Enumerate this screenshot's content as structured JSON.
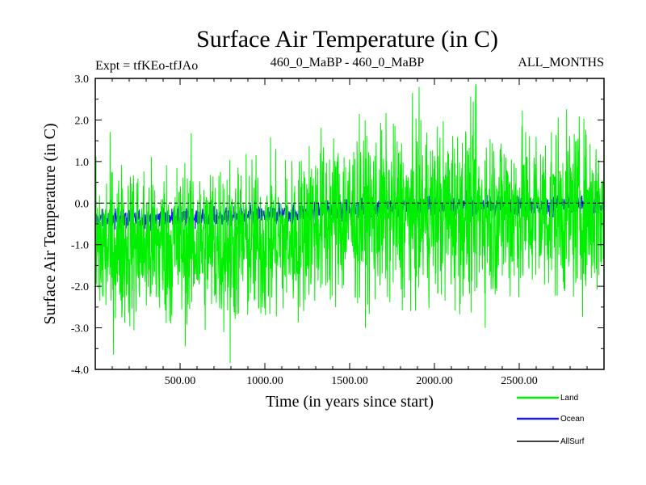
{
  "chart_data": {
    "type": "line",
    "title": "Surface Air Temperature (in C)",
    "subtitle_left": "Expt = tfKEo-tfJAo",
    "subtitle_center": "460_0_MaBP - 460_0_MaBP",
    "subtitle_right": "ALL_MONTHS",
    "xlabel": "Time (in years since start)",
    "ylabel": "Surface Air Temperature (in C)",
    "xlim": [
      0,
      3000
    ],
    "ylim": [
      -4.0,
      3.0
    ],
    "xticks": [
      500,
      1000,
      1500,
      2000,
      2500
    ],
    "xtick_labels": [
      "500.00",
      "1000.00",
      "1500.00",
      "2000.00",
      "2500.00"
    ],
    "yticks": [
      3.0,
      2.0,
      1.0,
      0.0,
      -1.0,
      -2.0,
      -3.0,
      -4.0
    ],
    "ytick_labels": [
      "3.0",
      "2.0",
      "1.0",
      "0.0",
      "-1.0",
      "-2.0",
      "-3.0",
      "-4.0"
    ],
    "reference_line_y": 0.0,
    "legend_placement": "bottom-right",
    "series": [
      {
        "name": "Land",
        "color": "#00ee00",
        "style": "noisy annual series (green band)",
        "x": [
          0,
          250,
          500,
          750,
          1000,
          1200,
          1250,
          1500,
          1750,
          2000,
          2250,
          2500,
          2750,
          3000
        ],
        "mean": [
          -1.05,
          -1.0,
          -1.0,
          -0.95,
          -0.95,
          -0.85,
          -0.45,
          -0.35,
          -0.3,
          -0.25,
          -0.25,
          -0.2,
          -0.2,
          -0.2
        ],
        "upper": [
          0.9,
          0.9,
          0.9,
          0.95,
          0.95,
          0.95,
          1.8,
          1.9,
          1.9,
          2.0,
          2.1,
          2.1,
          2.0,
          2.0
        ],
        "lower": [
          -3.4,
          -3.3,
          -3.4,
          -3.4,
          -3.3,
          -3.1,
          -2.6,
          -2.5,
          -2.5,
          -2.6,
          -2.5,
          -2.5,
          -2.4,
          -2.3
        ],
        "max": 2.85,
        "max_x": 2245,
        "min": -3.85,
        "min_x": 795
      },
      {
        "name": "Ocean",
        "color": "#1a1aee",
        "style": "noisy annual series (blue band)",
        "x": [
          0,
          250,
          500,
          750,
          1000,
          1250,
          1500,
          1750,
          2000,
          2250,
          2500,
          2750,
          3000
        ],
        "mean": [
          -0.4,
          -0.38,
          -0.35,
          -0.33,
          -0.3,
          -0.22,
          -0.15,
          -0.1,
          -0.07,
          -0.05,
          -0.05,
          -0.05,
          -0.05
        ],
        "upper": [
          -0.15,
          -0.13,
          -0.1,
          -0.08,
          -0.05,
          0.03,
          0.12,
          0.17,
          0.22,
          0.25,
          0.23,
          0.22,
          0.22
        ],
        "lower": [
          -0.65,
          -0.63,
          -0.6,
          -0.58,
          -0.55,
          -0.47,
          -0.4,
          -0.35,
          -0.32,
          -0.3,
          -0.3,
          -0.3,
          -0.3
        ]
      },
      {
        "name": "AllSurf",
        "color": "#000000",
        "style": "legend only"
      }
    ],
    "legend": [
      "Ocean",
      "Land",
      "AllSurf"
    ]
  }
}
